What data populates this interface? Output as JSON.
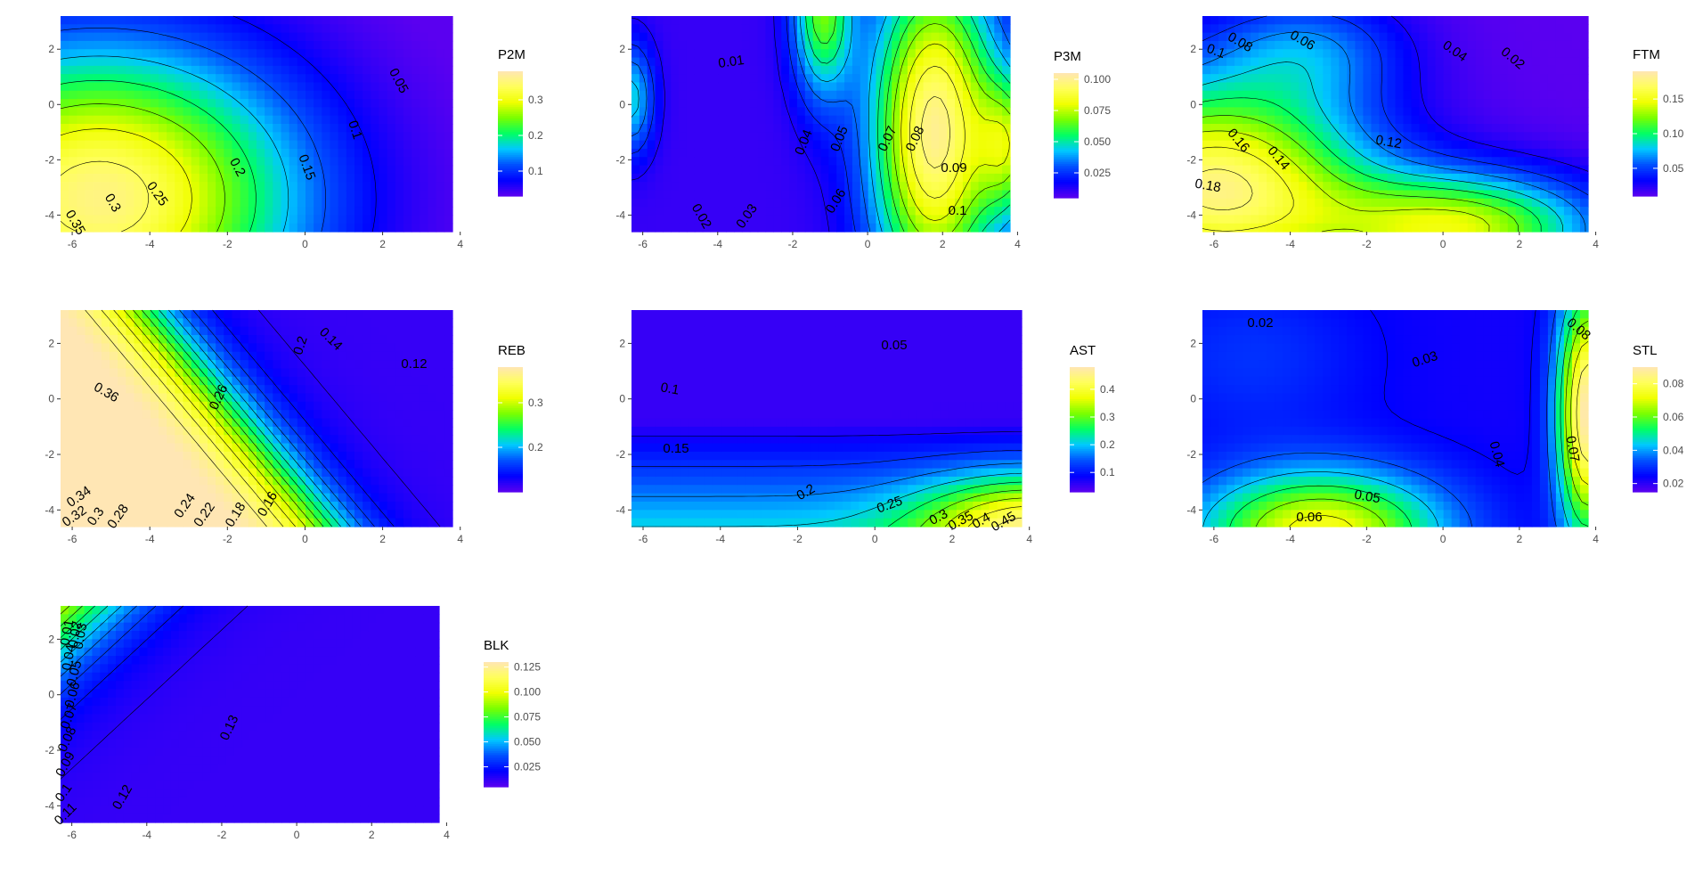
{
  "chart_data": [
    {
      "type": "heatmap",
      "legend_title": "P2M",
      "xlim": [
        -6.3,
        3.8
      ],
      "ylim": [
        -4.6,
        3.2
      ],
      "x_ticks": [
        -6,
        -4,
        -2,
        0,
        2,
        4
      ],
      "y_ticks": [
        2,
        0,
        -2,
        -4
      ],
      "legend_range": [
        0.03,
        0.38
      ],
      "legend_ticks": [
        0.1,
        0.2,
        0.3
      ],
      "contour_labels": [
        "0.35",
        "0.3",
        "0.25",
        "0.2",
        "0.15",
        "0.1",
        "0.05"
      ]
    },
    {
      "type": "heatmap",
      "legend_title": "P3M",
      "xlim": [
        -6.3,
        3.8
      ],
      "ylim": [
        -4.6,
        3.2
      ],
      "x_ticks": [
        -6,
        -4,
        -2,
        0,
        2,
        4
      ],
      "y_ticks": [
        2,
        0,
        -2,
        -4
      ],
      "legend_range": [
        0.005,
        0.105
      ],
      "legend_ticks": [
        0.025,
        0.05,
        0.075,
        0.1
      ],
      "legend_tick_labels": [
        "0.025",
        "0.050",
        "0.075",
        "0.100"
      ],
      "contour_labels": [
        "0.01",
        "0.02",
        "0.03",
        "0.04",
        "0.05",
        "0.06",
        "0.07",
        "0.08",
        "0.09",
        "0.1"
      ]
    },
    {
      "type": "heatmap",
      "legend_title": "FTM",
      "xlim": [
        -6.3,
        3.8
      ],
      "ylim": [
        -4.6,
        3.2
      ],
      "x_ticks": [
        -6,
        -4,
        -2,
        0,
        2,
        4
      ],
      "y_ticks": [
        2,
        0,
        -2,
        -4
      ],
      "legend_range": [
        0.01,
        0.19
      ],
      "legend_ticks": [
        0.05,
        0.1,
        0.15
      ],
      "legend_tick_labels": [
        "0.05",
        "0.10",
        "0.15"
      ],
      "contour_labels": [
        "0.08",
        "0.06",
        "0.04",
        "0.02",
        "0.1",
        "0.16",
        "0.14",
        "0.12",
        "0.18"
      ]
    },
    {
      "type": "heatmap",
      "legend_title": "REB",
      "xlim": [
        -6.3,
        3.8
      ],
      "ylim": [
        -4.6,
        3.2
      ],
      "x_ticks": [
        -6,
        -4,
        -2,
        0,
        2,
        4
      ],
      "y_ticks": [
        2,
        0,
        -2,
        -4
      ],
      "legend_range": [
        0.1,
        0.38
      ],
      "legend_ticks": [
        0.2,
        0.3
      ],
      "contour_labels": [
        "0.36",
        "0.34",
        "0.32",
        "0.3",
        "0.28",
        "0.26",
        "0.24",
        "0.22",
        "0.2",
        "0.18",
        "0.16",
        "0.14",
        "0.12"
      ]
    },
    {
      "type": "heatmap",
      "legend_title": "AST",
      "xlim": [
        -6.3,
        3.8
      ],
      "ylim": [
        -4.6,
        3.2
      ],
      "x_ticks": [
        -6,
        -4,
        -2,
        0,
        2,
        4
      ],
      "y_ticks": [
        2,
        0,
        -2,
        -4
      ],
      "legend_range": [
        0.03,
        0.48
      ],
      "legend_ticks": [
        0.1,
        0.2,
        0.3,
        0.4
      ],
      "contour_labels": [
        "0.05",
        "0.1",
        "0.15",
        "0.2",
        "0.25",
        "0.3",
        "0.35",
        "0.4",
        "0.45"
      ]
    },
    {
      "type": "heatmap",
      "legend_title": "STL",
      "xlim": [
        -6.3,
        3.8
      ],
      "ylim": [
        -4.6,
        3.2
      ],
      "x_ticks": [
        -6,
        -4,
        -2,
        0,
        2,
        4
      ],
      "y_ticks": [
        2,
        0,
        -2,
        -4
      ],
      "legend_range": [
        0.015,
        0.09
      ],
      "legend_ticks": [
        0.02,
        0.04,
        0.06,
        0.08
      ],
      "contour_labels": [
        "0.02",
        "0.03",
        "0.04",
        "0.05",
        "0.06",
        "0.07",
        "0.08"
      ]
    },
    {
      "type": "heatmap",
      "legend_title": "BLK",
      "xlim": [
        -6.3,
        3.8
      ],
      "ylim": [
        -4.6,
        3.2
      ],
      "x_ticks": [
        -6,
        -4,
        -2,
        0,
        2,
        4
      ],
      "y_ticks": [
        2,
        0,
        -2,
        -4
      ],
      "legend_range": [
        0.005,
        0.13
      ],
      "legend_ticks": [
        0.025,
        0.05,
        0.075,
        0.1,
        0.125
      ],
      "legend_tick_labels": [
        "0.025",
        "0.050",
        "0.075",
        "0.100",
        "0.125"
      ],
      "contour_labels": [
        "0.01",
        "0.02",
        "0.03",
        "0.04",
        "0.05",
        "0.06",
        "0.07",
        "0.08",
        "0.09",
        "0.1",
        "0.11",
        "0.12",
        "0.13"
      ]
    }
  ],
  "colors": {
    "scale": [
      "#5a00f0",
      "#0000ff",
      "#0050ff",
      "#00c8ff",
      "#00ff64",
      "#78ff00",
      "#f0ff00",
      "#ffff5a",
      "#ffe6b4"
    ],
    "contour": "#000000",
    "axis_text": "#4d4d4d"
  }
}
